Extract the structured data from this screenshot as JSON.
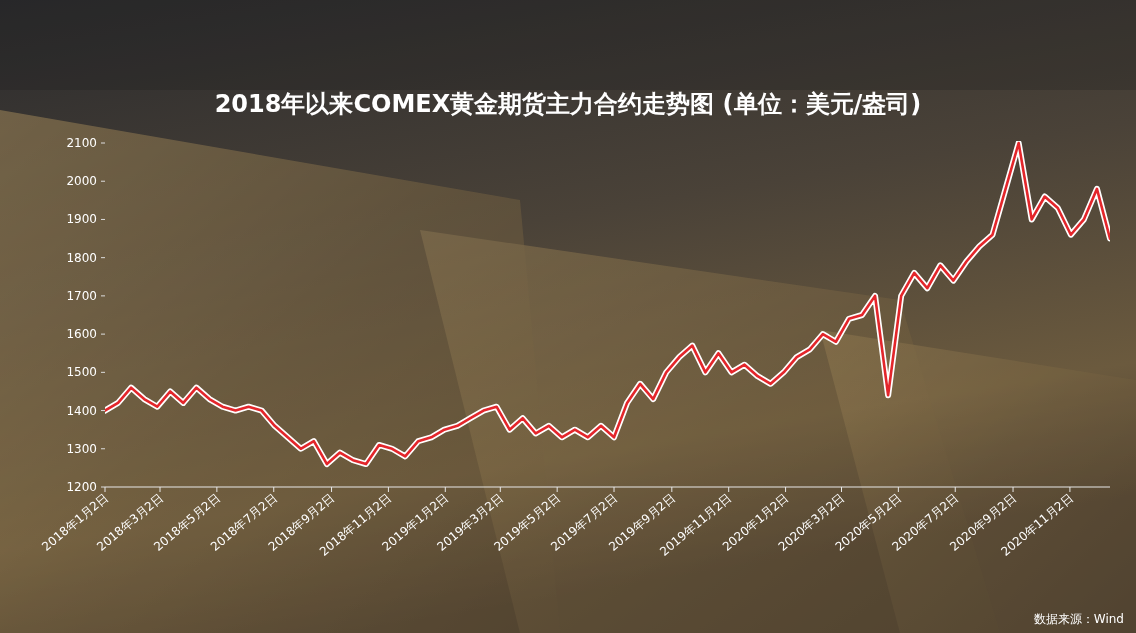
{
  "chart_data": {
    "type": "line",
    "title": "2018年以来COMEX黄金期货主力合约走势图 (单位：美元/盎司)",
    "source": "数据来源：Wind",
    "x": [
      "2018-01-02",
      "2018-01-16",
      "2018-01-30",
      "2018-02-13",
      "2018-02-27",
      "2018-03-13",
      "2018-03-27",
      "2018-04-10",
      "2018-04-24",
      "2018-05-08",
      "2018-05-22",
      "2018-06-05",
      "2018-06-19",
      "2018-07-03",
      "2018-07-17",
      "2018-07-31",
      "2018-08-14",
      "2018-08-28",
      "2018-09-11",
      "2018-09-25",
      "2018-10-09",
      "2018-10-23",
      "2018-11-06",
      "2018-11-20",
      "2018-12-04",
      "2018-12-18",
      "2019-01-01",
      "2019-01-15",
      "2019-01-29",
      "2019-02-12",
      "2019-02-26",
      "2019-03-12",
      "2019-03-26",
      "2019-04-09",
      "2019-04-23",
      "2019-05-07",
      "2019-05-21",
      "2019-06-04",
      "2019-06-18",
      "2019-07-02",
      "2019-07-16",
      "2019-07-30",
      "2019-08-13",
      "2019-08-27",
      "2019-09-10",
      "2019-09-24",
      "2019-10-08",
      "2019-10-22",
      "2019-11-05",
      "2019-11-19",
      "2019-12-03",
      "2019-12-17",
      "2019-12-31",
      "2020-01-14",
      "2020-01-28",
      "2020-02-11",
      "2020-02-25",
      "2020-03-10",
      "2020-03-24",
      "2020-04-07",
      "2020-04-21",
      "2020-05-05",
      "2020-05-19",
      "2020-06-02",
      "2020-06-16",
      "2020-06-30",
      "2020-07-14",
      "2020-07-28",
      "2020-08-11",
      "2020-08-25",
      "2020-09-08",
      "2020-09-22",
      "2020-10-06",
      "2020-10-20",
      "2020-11-03",
      "2020-11-17",
      "2020-12-01",
      "2020-12-15"
    ],
    "series": [
      {
        "name": "COMEX黄金期货主力合约",
        "color": "#e3262b",
        "values": [
          1400,
          1420,
          1460,
          1430,
          1410,
          1450,
          1420,
          1460,
          1430,
          1410,
          1400,
          1410,
          1400,
          1360,
          1330,
          1300,
          1320,
          1260,
          1290,
          1270,
          1260,
          1310,
          1300,
          1280,
          1320,
          1330,
          1350,
          1360,
          1380,
          1400,
          1410,
          1350,
          1380,
          1340,
          1360,
          1330,
          1350,
          1330,
          1360,
          1330,
          1420,
          1470,
          1430,
          1500,
          1540,
          1570,
          1500,
          1550,
          1500,
          1520,
          1490,
          1470,
          1500,
          1540,
          1560,
          1600,
          1580,
          1640,
          1650,
          1700,
          1440,
          1700,
          1760,
          1720,
          1780,
          1740,
          1790,
          1830,
          1860,
          1980,
          2100,
          1900,
          1960,
          1930,
          1860,
          1900,
          1980,
          1850
        ]
      }
    ],
    "xlim": [
      "2018-01-02",
      "2020-12-15"
    ],
    "xticks": [
      {
        "value": "2018-01-02",
        "label": "2018年1月2日"
      },
      {
        "value": "2018-03-02",
        "label": "2018年3月2日"
      },
      {
        "value": "2018-05-02",
        "label": "2018年5月2日"
      },
      {
        "value": "2018-07-02",
        "label": "2018年7月2日"
      },
      {
        "value": "2018-09-02",
        "label": "2018年9月2日"
      },
      {
        "value": "2018-11-02",
        "label": "2018年11月2日"
      },
      {
        "value": "2019-01-02",
        "label": "2019年1月2日"
      },
      {
        "value": "2019-03-02",
        "label": "2019年3月2日"
      },
      {
        "value": "2019-05-02",
        "label": "2019年5月2日"
      },
      {
        "value": "2019-07-02",
        "label": "2019年7月2日"
      },
      {
        "value": "2019-09-02",
        "label": "2019年9月2日"
      },
      {
        "value": "2019-11-02",
        "label": "2019年11月2日"
      },
      {
        "value": "2020-01-02",
        "label": "2020年1月2日"
      },
      {
        "value": "2020-03-02",
        "label": "2020年3月2日"
      },
      {
        "value": "2020-05-02",
        "label": "2020年5月2日"
      },
      {
        "value": "2020-07-02",
        "label": "2020年7月2日"
      },
      {
        "value": "2020-09-02",
        "label": "2020年9月2日"
      },
      {
        "value": "2020-11-02",
        "label": "2020年11月2日"
      }
    ],
    "ylim": [
      1200,
      2100
    ],
    "yticks": [
      1200,
      1300,
      1400,
      1500,
      1600,
      1700,
      1800,
      1900,
      2000,
      2100
    ],
    "grid": false
  }
}
